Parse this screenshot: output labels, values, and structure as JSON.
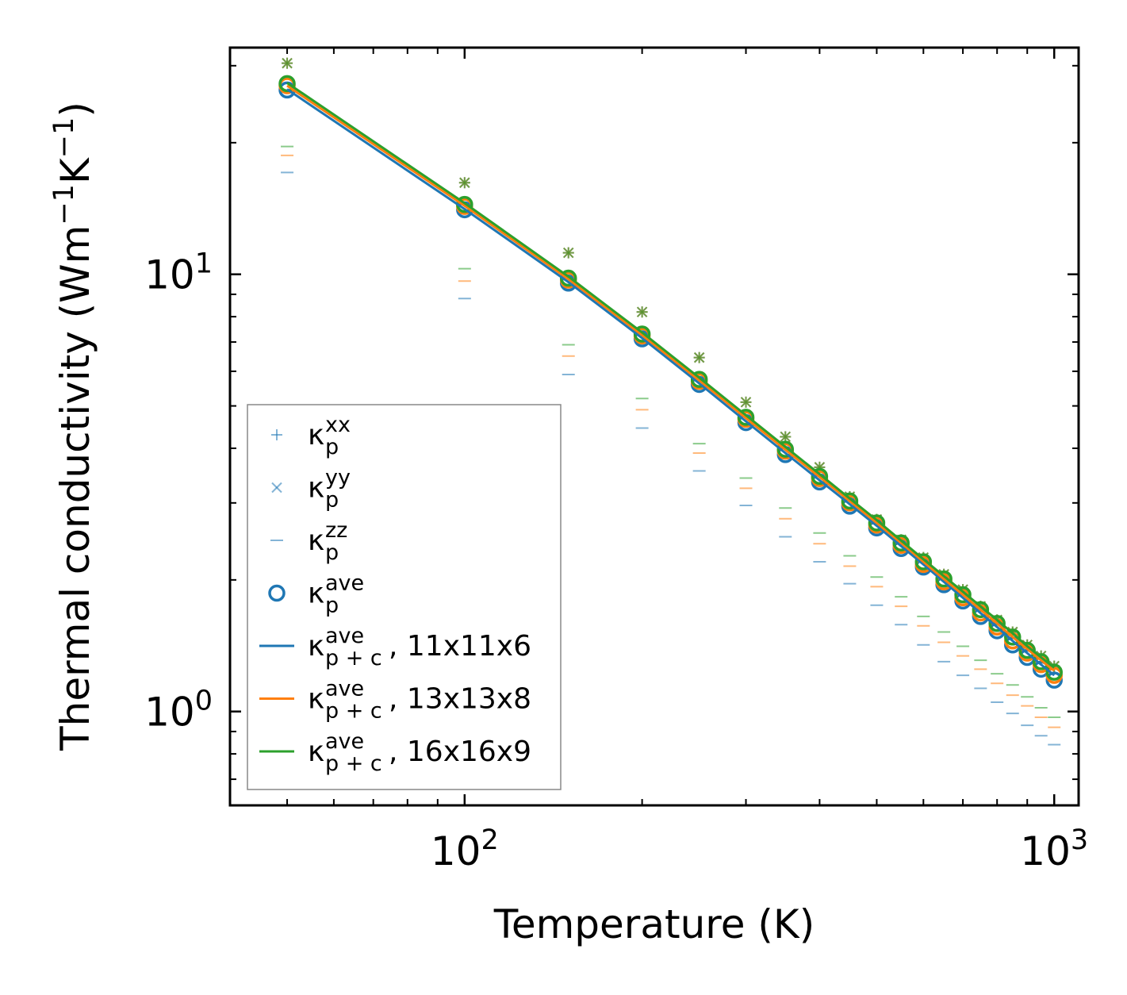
{
  "chart_data": {
    "type": "line",
    "scale": "log-log",
    "xlabel": "Temperature (K)",
    "ylabel": "Thermal conductivity (Wm",
    "ylabel_unit_parts": [
      "Thermal conductivity (Wm",
      "−1",
      "K",
      "−1",
      ")"
    ],
    "xlim": [
      40,
      1100
    ],
    "ylim": [
      0.61,
      33
    ],
    "x_ticks": [
      {
        "value": 100,
        "base": "10",
        "exp": "2"
      },
      {
        "value": 1000,
        "base": "10",
        "exp": "3"
      }
    ],
    "y_ticks": [
      {
        "value": 1,
        "base": "10",
        "exp": "0"
      },
      {
        "value": 10,
        "base": "10",
        "exp": "1"
      }
    ],
    "x": [
      50,
      100,
      150,
      200,
      250,
      300,
      350,
      400,
      450,
      500,
      550,
      600,
      650,
      700,
      750,
      800,
      850,
      900,
      950,
      1000
    ],
    "series": [
      {
        "name": "kp_xx",
        "kind": "marker",
        "marker": "plus",
        "color": "#1f77b4",
        "values": [
          30.4,
          16.2,
          11.2,
          8.2,
          6.45,
          5.1,
          4.25,
          3.62,
          3.1,
          2.75,
          2.47,
          2.25,
          2.06,
          1.9,
          1.74,
          1.62,
          1.52,
          1.42,
          1.34,
          1.27
        ]
      },
      {
        "name": "kp_yy",
        "kind": "marker",
        "marker": "cross",
        "color": "#1f77b4",
        "values": [
          30.4,
          16.2,
          11.2,
          8.2,
          6.45,
          5.1,
          4.25,
          3.62,
          3.1,
          2.75,
          2.47,
          2.25,
          2.06,
          1.9,
          1.74,
          1.62,
          1.52,
          1.42,
          1.34,
          1.27
        ]
      },
      {
        "name": "kp_zz_11x11x6",
        "kind": "marker",
        "marker": "dash",
        "color": "#1f77b4",
        "values": [
          17.1,
          8.8,
          5.9,
          4.45,
          3.55,
          2.96,
          2.51,
          2.2,
          1.96,
          1.75,
          1.58,
          1.42,
          1.3,
          1.21,
          1.13,
          1.05,
          0.99,
          0.93,
          0.88,
          0.84
        ]
      },
      {
        "name": "kp_zz_13x13x8",
        "kind": "marker",
        "marker": "dash",
        "color": "#ff7f0e",
        "values": [
          18.7,
          9.65,
          6.5,
          4.9,
          3.9,
          3.24,
          2.76,
          2.42,
          2.15,
          1.93,
          1.74,
          1.57,
          1.44,
          1.34,
          1.25,
          1.16,
          1.09,
          1.03,
          0.97,
          0.92
        ]
      },
      {
        "name": "kp_zz_16x16x9",
        "kind": "marker",
        "marker": "dash",
        "color": "#2ca02c",
        "values": [
          19.6,
          10.3,
          6.9,
          5.2,
          4.1,
          3.42,
          2.92,
          2.56,
          2.27,
          2.03,
          1.83,
          1.65,
          1.52,
          1.41,
          1.31,
          1.22,
          1.15,
          1.08,
          1.02,
          0.97
        ]
      },
      {
        "name": "kp_ave_11x11x6",
        "kind": "circle",
        "color": "#1f77b4",
        "values": [
          26.4,
          14.05,
          9.55,
          7.12,
          5.6,
          4.58,
          3.87,
          3.35,
          2.95,
          2.63,
          2.36,
          2.14,
          1.95,
          1.79,
          1.65,
          1.53,
          1.42,
          1.33,
          1.25,
          1.18
        ]
      },
      {
        "name": "kp_ave_13x13x8",
        "kind": "circle",
        "color": "#ff7f0e",
        "values": [
          27.0,
          14.3,
          9.7,
          7.23,
          5.69,
          4.66,
          3.94,
          3.41,
          3.0,
          2.67,
          2.4,
          2.17,
          1.98,
          1.82,
          1.68,
          1.56,
          1.45,
          1.36,
          1.28,
          1.21
        ]
      },
      {
        "name": "kp_ave_16x16x9",
        "kind": "circle",
        "color": "#2ca02c",
        "values": [
          27.3,
          14.45,
          9.8,
          7.3,
          5.75,
          4.71,
          3.98,
          3.45,
          3.03,
          2.7,
          2.43,
          2.2,
          2.01,
          1.85,
          1.71,
          1.59,
          1.48,
          1.38,
          1.3,
          1.23
        ]
      },
      {
        "name": "kpc_ave_11x11x6",
        "kind": "line",
        "color": "#1f77b4",
        "values": [
          26.5,
          14.1,
          9.6,
          7.15,
          5.63,
          4.61,
          3.9,
          3.38,
          2.98,
          2.66,
          2.39,
          2.17,
          1.98,
          1.82,
          1.68,
          1.56,
          1.45,
          1.36,
          1.28,
          1.21
        ]
      },
      {
        "name": "kpc_ave_13x13x8",
        "kind": "line",
        "color": "#ff7f0e",
        "values": [
          27.0,
          14.35,
          9.75,
          7.26,
          5.72,
          4.69,
          3.97,
          3.44,
          3.03,
          2.7,
          2.43,
          2.2,
          2.01,
          1.85,
          1.71,
          1.59,
          1.48,
          1.39,
          1.31,
          1.24
        ]
      },
      {
        "name": "kpc_ave_16x16x9",
        "kind": "line",
        "color": "#2ca02c",
        "values": [
          27.4,
          14.55,
          9.88,
          7.36,
          5.8,
          4.76,
          4.03,
          3.49,
          3.07,
          2.74,
          2.46,
          2.23,
          2.04,
          1.88,
          1.74,
          1.62,
          1.51,
          1.41,
          1.33,
          1.26
        ]
      }
    ],
    "legend": {
      "placement": "lower-left",
      "entries": [
        {
          "marker": "plus",
          "color": "#1f77b4",
          "kappa": "κ",
          "sub": "p",
          "sup": "xx",
          "suffix": ""
        },
        {
          "marker": "cross",
          "color": "#1f77b4",
          "kappa": "κ",
          "sub": "p",
          "sup": "yy",
          "suffix": ""
        },
        {
          "marker": "dash",
          "color": "#1f77b4",
          "kappa": "κ",
          "sub": "p",
          "sup": "zz",
          "suffix": ""
        },
        {
          "marker": "circle",
          "color": "#1f77b4",
          "kappa": "κ",
          "sub": "p",
          "sup": "ave",
          "suffix": ""
        },
        {
          "marker": "line",
          "color": "#1f77b4",
          "kappa": "κ",
          "sub": "p + c",
          "sup": "ave",
          "suffix": ", 11x11x6"
        },
        {
          "marker": "line",
          "color": "#ff7f0e",
          "kappa": "κ",
          "sub": "p + c",
          "sup": "ave",
          "suffix": ", 13x13x8"
        },
        {
          "marker": "line",
          "color": "#2ca02c",
          "kappa": "κ",
          "sub": "p + c",
          "sup": "ave",
          "suffix": ", 16x16x9"
        }
      ]
    }
  }
}
